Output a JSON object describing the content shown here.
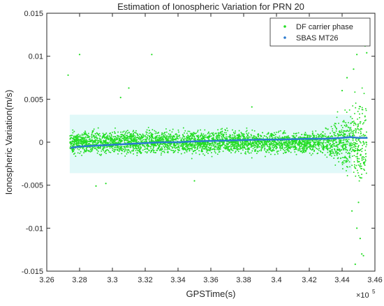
{
  "chart_data": {
    "type": "scatter",
    "title": "Estimation of Ionospheric Variation for PRN 20",
    "xlabel": "GPSTime(s)",
    "ylabel": "Ionospheric Variation(m/s)",
    "x_exponent_label": "×10",
    "x_exponent_power": "5",
    "xlim": [
      3.26,
      3.46
    ],
    "ylim": [
      -0.015,
      0.015
    ],
    "xticks": [
      3.26,
      3.28,
      3.3,
      3.32,
      3.34,
      3.36,
      3.38,
      3.4,
      3.42,
      3.44,
      3.46
    ],
    "xtick_labels": [
      "3.26",
      "3.28",
      "3.3",
      "3.32",
      "3.34",
      "3.36",
      "3.38",
      "3.4",
      "3.42",
      "3.44",
      "3.46"
    ],
    "yticks": [
      -0.015,
      -0.01,
      -0.005,
      0,
      0.005,
      0.01,
      0.015
    ],
    "ytick_labels": [
      "-0.015",
      "-0.01",
      "-0.005",
      "0",
      "0.005",
      "0.01",
      "0.015"
    ],
    "grid": false,
    "legend_position": "top-right",
    "series": [
      {
        "name": "DF carrier phase",
        "color": "#22dd22",
        "marker": "dot",
        "data_extent_x": [
          3.274,
          3.455
        ],
        "typical_band_y": [
          -0.003,
          0.003
        ],
        "points": [
          [
            3.28,
            0.0102
          ],
          [
            3.273,
            0.0078
          ],
          [
            3.324,
            0.0102
          ],
          [
            3.31,
            0.0063
          ],
          [
            3.305,
            0.0052
          ],
          [
            3.296,
            -0.0048
          ],
          [
            3.29,
            -0.0051
          ],
          [
            3.35,
            -0.0045
          ],
          [
            3.385,
            0.0041
          ],
          [
            3.44,
            0.006
          ],
          [
            3.443,
            0.0075
          ],
          [
            3.447,
            0.0085
          ],
          [
            3.449,
            0.0102
          ],
          [
            3.452,
            0.0118
          ],
          [
            3.454,
            0.0112
          ],
          [
            3.455,
            0.0104
          ],
          [
            3.449,
            -0.01
          ],
          [
            3.451,
            -0.0112
          ],
          [
            3.452,
            -0.013
          ],
          [
            3.448,
            -0.0142
          ],
          [
            3.453,
            -0.0132
          ],
          [
            3.446,
            -0.008
          ],
          [
            3.45,
            -0.007
          ]
        ]
      },
      {
        "name": "SBAS MT26",
        "color": "#2b7bcf",
        "marker": "dot",
        "points": [
          [
            3.275,
            -0.00065
          ],
          [
            3.28,
            -0.0005
          ],
          [
            3.29,
            -0.0004
          ],
          [
            3.3,
            -0.0003
          ],
          [
            3.31,
            -0.0002
          ],
          [
            3.32,
            -0.0001
          ],
          [
            3.33,
            0.0
          ],
          [
            3.34,
            0.0
          ],
          [
            3.35,
            0.0001
          ],
          [
            3.36,
            0.00015
          ],
          [
            3.37,
            0.0002
          ],
          [
            3.38,
            0.00025
          ],
          [
            3.39,
            0.0003
          ],
          [
            3.4,
            0.0003
          ],
          [
            3.41,
            0.00035
          ],
          [
            3.42,
            0.0004
          ],
          [
            3.43,
            0.0004
          ],
          [
            3.44,
            0.0005
          ],
          [
            3.445,
            0.0006
          ],
          [
            3.45,
            0.0005
          ],
          [
            3.455,
            0.0005
          ]
        ]
      }
    ]
  }
}
